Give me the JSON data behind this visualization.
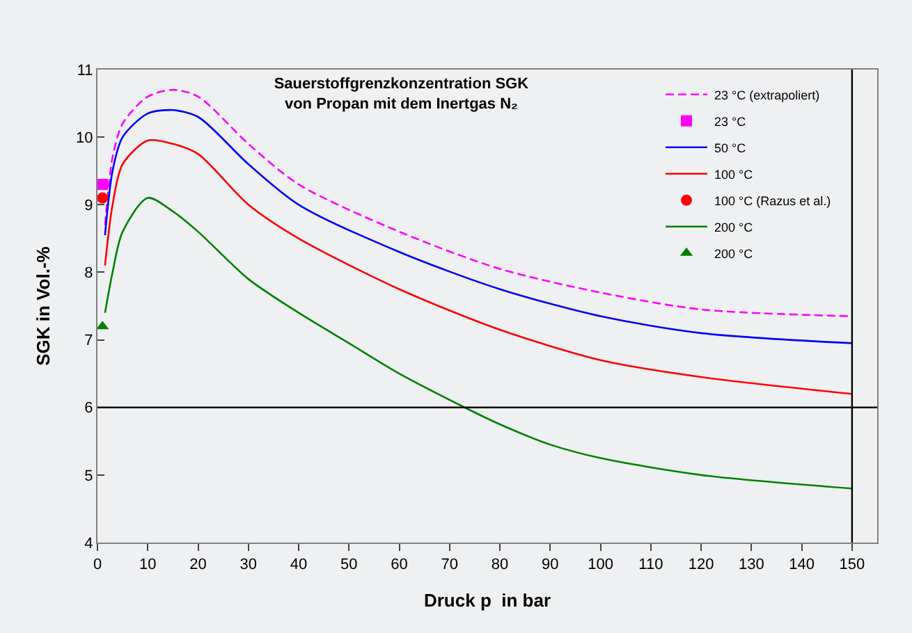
{
  "chart_data": {
    "type": "line",
    "title": "Sauerstoffgrenzkonzentration SGK",
    "subtitle": "von Propan mit dem Inertgas N₂",
    "xlabel": "Druck p  in bar",
    "ylabel": "SGK in Vol.-%",
    "xlim": [
      0,
      155
    ],
    "xticks": [
      0,
      10,
      20,
      30,
      40,
      50,
      60,
      70,
      80,
      90,
      100,
      110,
      120,
      130,
      140,
      150
    ],
    "ylim": [
      4,
      11
    ],
    "yticks": [
      4,
      5,
      6,
      7,
      8,
      9,
      10,
      11
    ],
    "grid": false,
    "legend": "top right",
    "ref_lines": [
      {
        "axis": "y",
        "value": 6,
        "color": "#000000"
      },
      {
        "axis": "x",
        "value": 150,
        "color": "#000000"
      }
    ],
    "series": [
      {
        "name": "23 °C (extrapoliert)",
        "line_style": "dashed",
        "marker": "none",
        "color": "#ff00ff",
        "x": [
          1.5,
          3,
          5,
          10,
          15,
          20,
          30,
          40,
          60,
          80,
          100,
          120,
          150
        ],
        "values": [
          8.7,
          9.7,
          10.2,
          10.6,
          10.7,
          10.6,
          9.9,
          9.3,
          8.6,
          8.05,
          7.7,
          7.45,
          7.35
        ]
      },
      {
        "name": "23 °C",
        "type": "scatter",
        "marker": "square",
        "color": "#ff00ff",
        "x": [
          1
        ],
        "values": [
          9.3
        ]
      },
      {
        "name": "50 °C",
        "line_style": "solid",
        "marker": "none",
        "color": "#0000ff",
        "x": [
          1.5,
          3,
          5,
          10,
          15,
          20,
          30,
          40,
          60,
          80,
          100,
          120,
          150
        ],
        "values": [
          8.55,
          9.5,
          10.0,
          10.35,
          10.4,
          10.3,
          9.6,
          9.0,
          8.3,
          7.75,
          7.35,
          7.1,
          6.95
        ]
      },
      {
        "name": "100 °C",
        "line_style": "solid",
        "marker": "none",
        "color": "#ff0000",
        "x": [
          1.5,
          3,
          5,
          10,
          15,
          20,
          30,
          40,
          60,
          80,
          100,
          120,
          150
        ],
        "values": [
          8.1,
          9.0,
          9.6,
          9.95,
          9.9,
          9.75,
          9.0,
          8.5,
          7.75,
          7.15,
          6.7,
          6.45,
          6.2
        ]
      },
      {
        "name": "100 °C (Razus et al.)",
        "type": "scatter",
        "marker": "circle",
        "color": "#ff0000",
        "x": [
          1
        ],
        "values": [
          9.1
        ]
      },
      {
        "name": "200 °C",
        "line_style": "solid",
        "marker": "none",
        "color": "#008000",
        "x": [
          1.5,
          3,
          5,
          10,
          15,
          20,
          30,
          40,
          50,
          60,
          73,
          80,
          90,
          100,
          120,
          150
        ],
        "values": [
          7.4,
          8.0,
          8.6,
          9.1,
          8.9,
          8.6,
          7.9,
          7.4,
          6.95,
          6.5,
          6.0,
          5.75,
          5.45,
          5.25,
          5.0,
          4.8
        ]
      },
      {
        "name": "200 °C",
        "type": "scatter",
        "marker": "triangle",
        "color": "#008000",
        "x": [
          1
        ],
        "values": [
          7.2
        ]
      }
    ]
  }
}
